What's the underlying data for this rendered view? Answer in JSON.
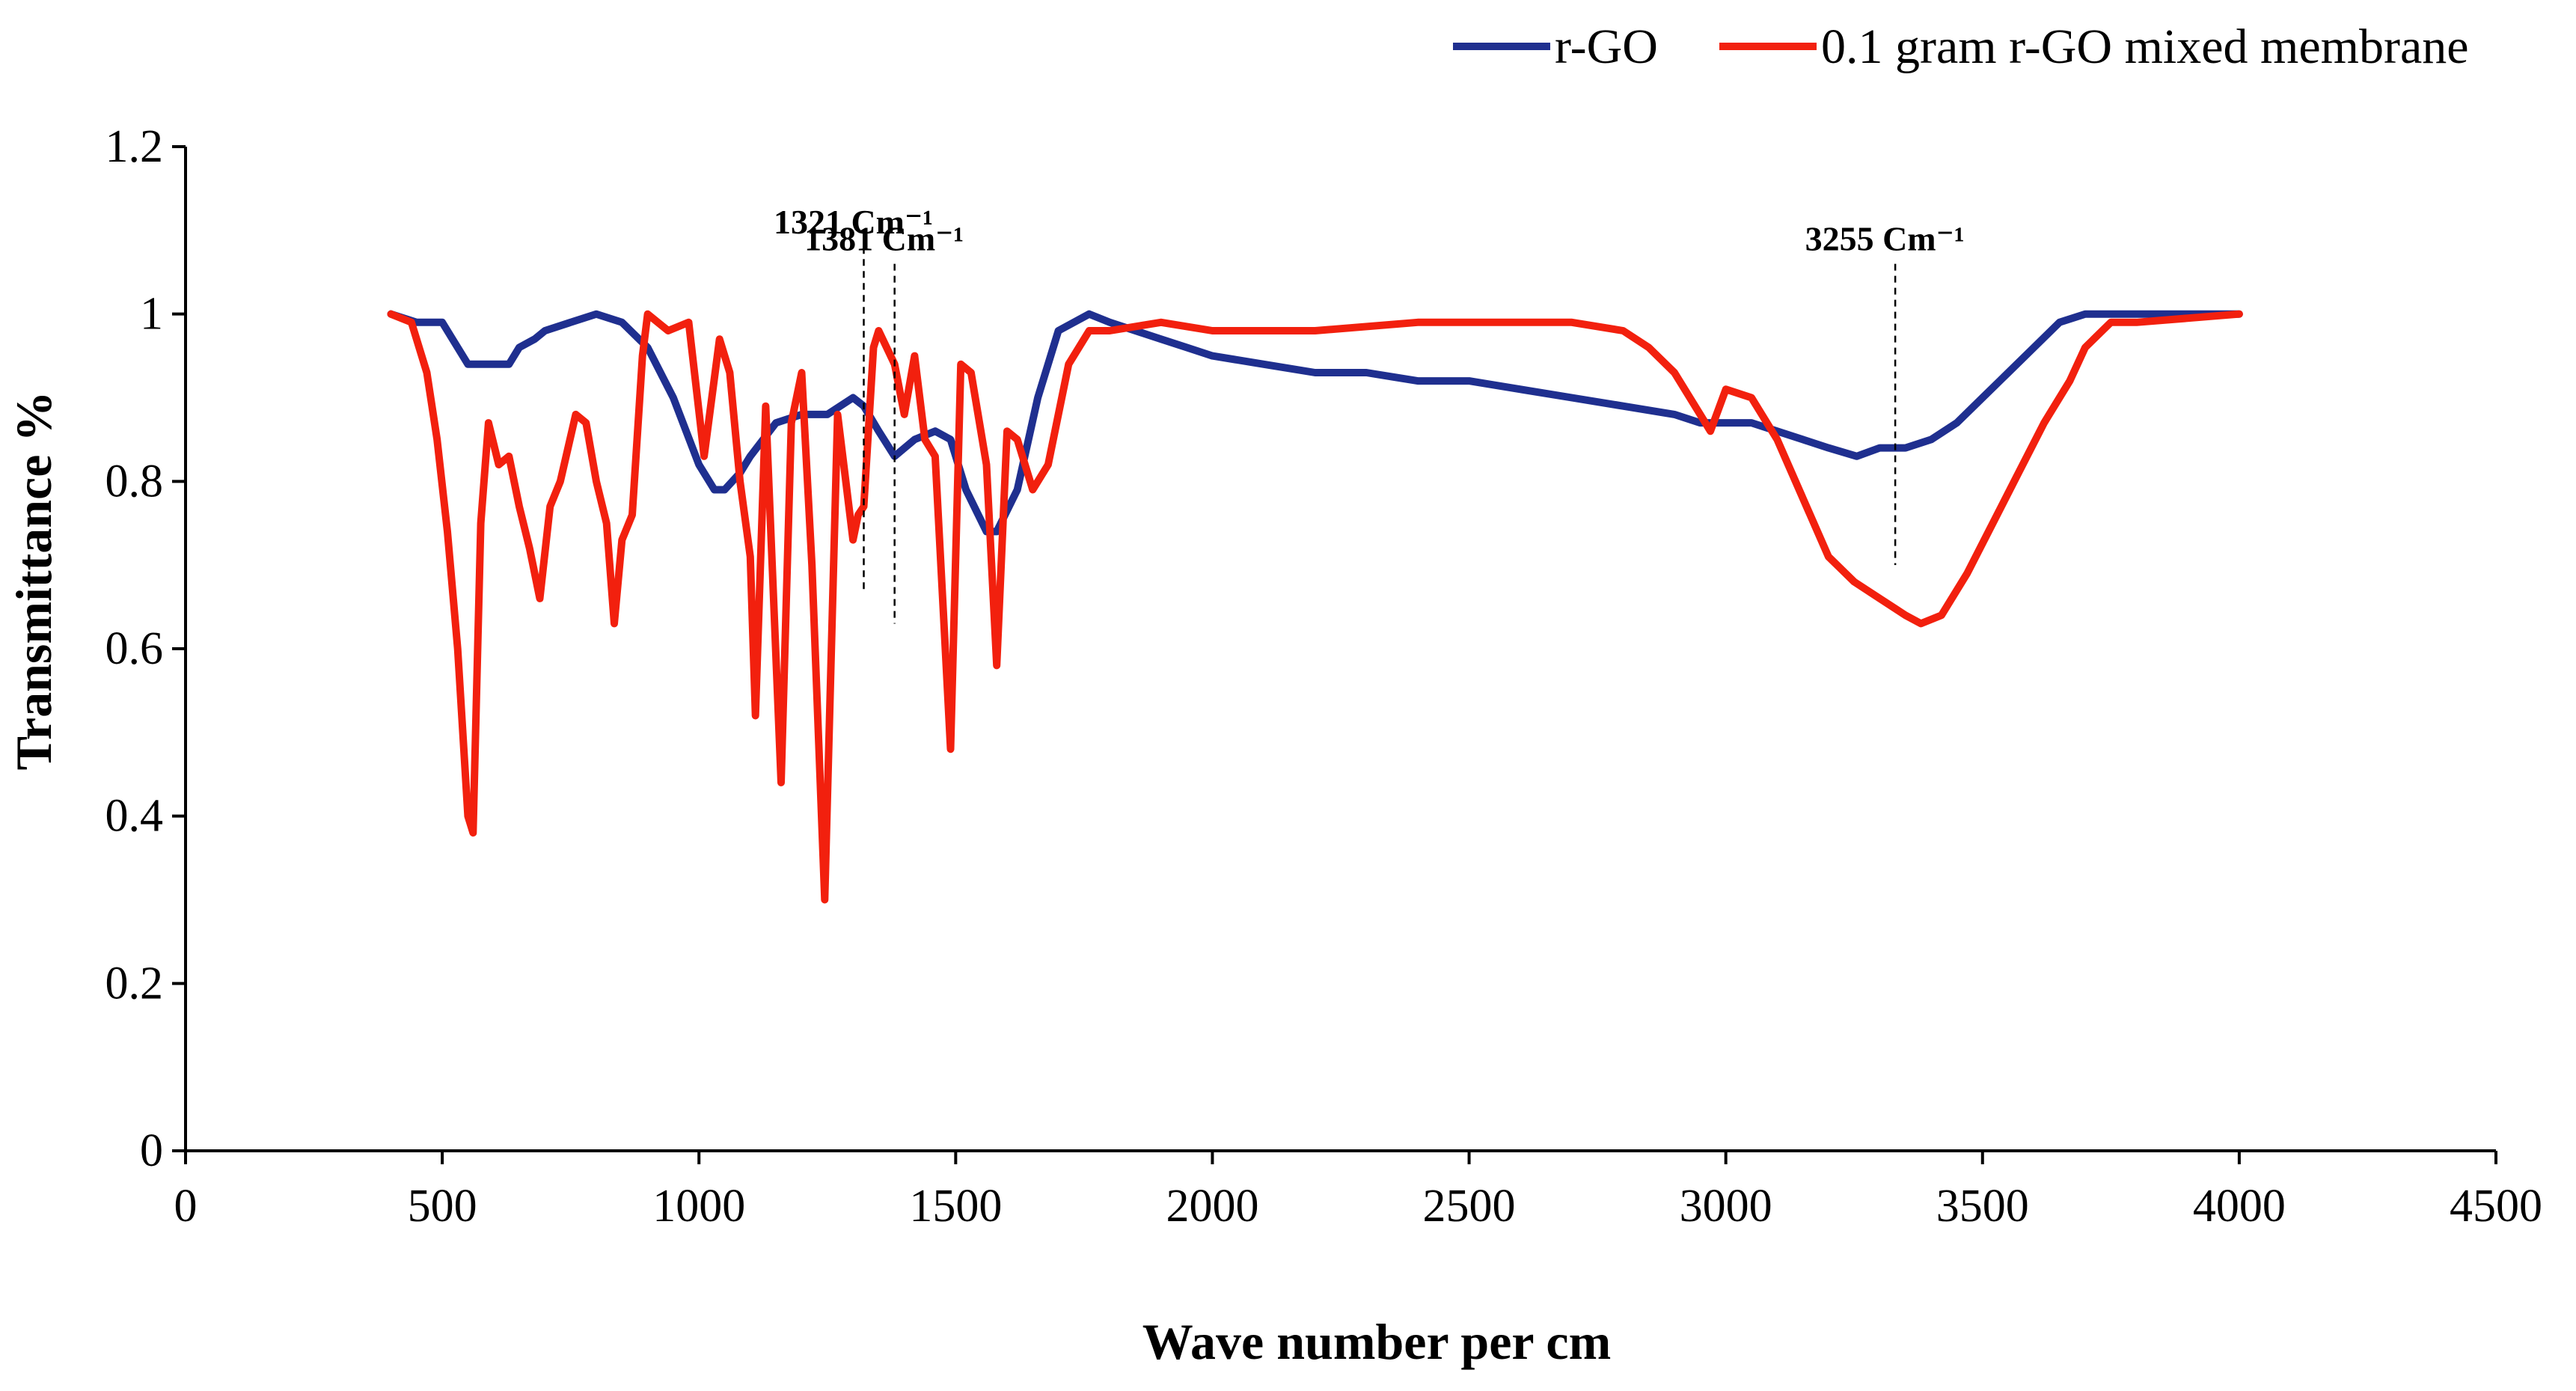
{
  "chart_data": {
    "type": "line",
    "title": "",
    "xlabel": "Wave number per cm",
    "ylabel": "Transmittance %",
    "xlim": [
      0,
      4500
    ],
    "ylim": [
      0,
      1.2
    ],
    "xticks": [
      0,
      500,
      1000,
      1500,
      2000,
      2500,
      3000,
      3500,
      4000,
      4500
    ],
    "yticks": [
      0,
      0.2,
      0.4,
      0.6,
      0.8,
      1,
      1.2
    ],
    "ytick_labels": [
      "0",
      "0.2",
      "0.4",
      "0.6",
      "0.8",
      "1",
      "1.2"
    ],
    "grid": false,
    "legend_position": "top-right",
    "series": [
      {
        "name": "r-GO",
        "color": "#1f2f8f",
        "x": [
          400,
          450,
          480,
          500,
          520,
          550,
          570,
          590,
          610,
          630,
          650,
          680,
          700,
          750,
          800,
          850,
          900,
          950,
          1000,
          1030,
          1050,
          1080,
          1100,
          1150,
          1200,
          1250,
          1300,
          1321,
          1350,
          1381,
          1420,
          1460,
          1490,
          1520,
          1560,
          1580,
          1620,
          1660,
          1700,
          1760,
          1800,
          1850,
          1900,
          1950,
          2000,
          2100,
          2200,
          2300,
          2400,
          2500,
          2600,
          2700,
          2800,
          2900,
          2950,
          3000,
          3050,
          3100,
          3150,
          3200,
          3255,
          3300,
          3350,
          3400,
          3450,
          3500,
          3550,
          3600,
          3650,
          3700,
          3800,
          3900,
          4000
        ],
        "values": [
          1.0,
          0.99,
          0.99,
          0.99,
          0.97,
          0.94,
          0.94,
          0.94,
          0.94,
          0.94,
          0.96,
          0.97,
          0.98,
          0.99,
          1.0,
          0.99,
          0.96,
          0.9,
          0.82,
          0.79,
          0.79,
          0.81,
          0.83,
          0.87,
          0.88,
          0.88,
          0.9,
          0.89,
          0.86,
          0.83,
          0.85,
          0.86,
          0.85,
          0.79,
          0.74,
          0.74,
          0.79,
          0.9,
          0.98,
          1.0,
          0.99,
          0.98,
          0.97,
          0.96,
          0.95,
          0.94,
          0.93,
          0.93,
          0.92,
          0.92,
          0.91,
          0.9,
          0.89,
          0.88,
          0.87,
          0.87,
          0.87,
          0.86,
          0.85,
          0.84,
          0.83,
          0.84,
          0.84,
          0.85,
          0.87,
          0.9,
          0.93,
          0.96,
          0.99,
          1.0,
          1.0,
          1.0,
          1.0
        ]
      },
      {
        "name": "0.1 gram r-GO mixed membrane",
        "color": "#f2200e",
        "x": [
          400,
          440,
          470,
          490,
          510,
          530,
          550,
          560,
          575,
          590,
          610,
          630,
          650,
          670,
          690,
          710,
          730,
          760,
          780,
          800,
          820,
          835,
          850,
          870,
          890,
          900,
          940,
          980,
          1010,
          1040,
          1060,
          1080,
          1100,
          1110,
          1130,
          1160,
          1180,
          1200,
          1220,
          1245,
          1270,
          1300,
          1310,
          1321,
          1340,
          1350,
          1381,
          1400,
          1420,
          1440,
          1460,
          1490,
          1510,
          1530,
          1560,
          1580,
          1600,
          1620,
          1650,
          1680,
          1720,
          1760,
          1800,
          1900,
          2000,
          2100,
          2200,
          2400,
          2600,
          2700,
          2800,
          2850,
          2900,
          2950,
          2970,
          3000,
          3050,
          3100,
          3150,
          3200,
          3250,
          3300,
          3350,
          3380,
          3420,
          3470,
          3520,
          3570,
          3620,
          3670,
          3700,
          3750,
          3800,
          4000
        ],
        "values": [
          1.0,
          0.99,
          0.93,
          0.85,
          0.74,
          0.6,
          0.4,
          0.38,
          0.75,
          0.87,
          0.82,
          0.83,
          0.77,
          0.72,
          0.66,
          0.77,
          0.8,
          0.88,
          0.87,
          0.8,
          0.75,
          0.63,
          0.73,
          0.76,
          0.95,
          1.0,
          0.98,
          0.99,
          0.83,
          0.97,
          0.93,
          0.8,
          0.71,
          0.52,
          0.89,
          0.44,
          0.87,
          0.93,
          0.7,
          0.3,
          0.88,
          0.73,
          0.76,
          0.77,
          0.96,
          0.98,
          0.94,
          0.88,
          0.95,
          0.85,
          0.83,
          0.48,
          0.94,
          0.93,
          0.82,
          0.58,
          0.86,
          0.85,
          0.79,
          0.82,
          0.94,
          0.98,
          0.98,
          0.99,
          0.98,
          0.98,
          0.98,
          0.99,
          0.99,
          0.99,
          0.98,
          0.96,
          0.93,
          0.88,
          0.86,
          0.91,
          0.9,
          0.85,
          0.78,
          0.71,
          0.68,
          0.66,
          0.64,
          0.63,
          0.64,
          0.69,
          0.75,
          0.81,
          0.87,
          0.92,
          0.96,
          0.99,
          0.99,
          1.0
        ]
      }
    ],
    "annotations": [
      {
        "text": "1321 Cm⁻¹",
        "x": 1321,
        "y_top": 1.08,
        "y_bottom": 0.67
      },
      {
        "text": "1381 Cm⁻¹",
        "x": 1381,
        "y_top": 1.06,
        "y_bottom": 0.63
      },
      {
        "text": "3255 Cm⁻¹",
        "x": 3330,
        "y_top": 1.06,
        "y_bottom": 0.7
      }
    ]
  }
}
